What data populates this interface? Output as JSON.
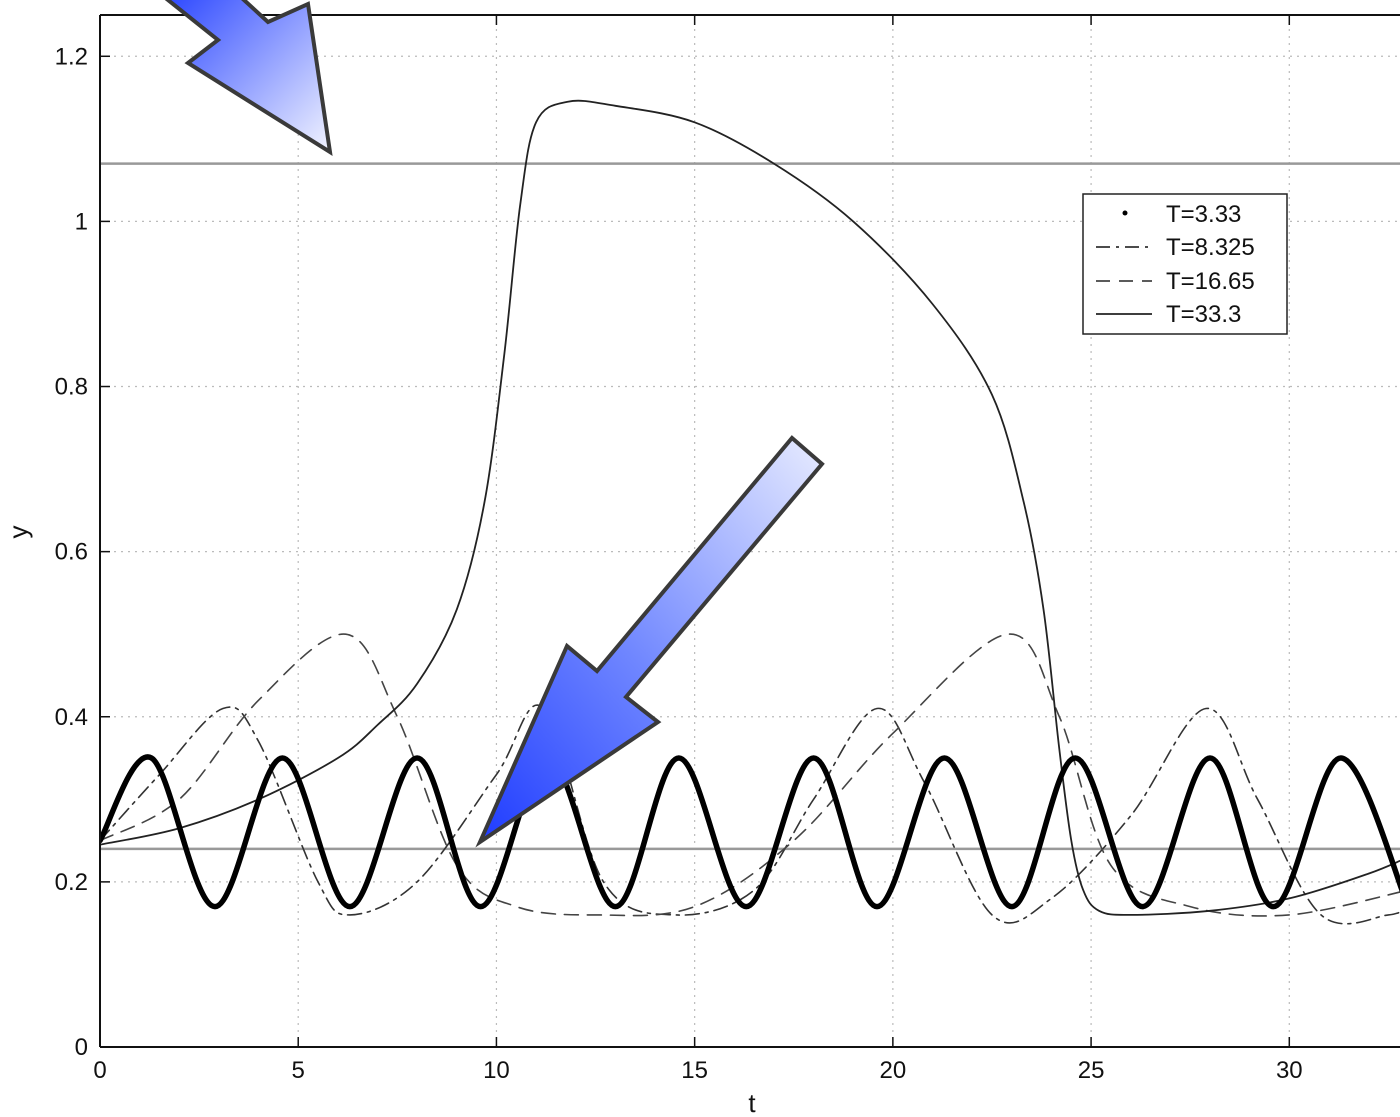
{
  "chart_data": {
    "type": "line",
    "title": "",
    "xlabel": "t",
    "ylabel": "y",
    "xlim": [
      0,
      33
    ],
    "ylim": [
      0,
      1.25
    ],
    "x_ticks": [
      "0",
      "5",
      "10",
      "15",
      "20",
      "25",
      "30"
    ],
    "y_ticks": [
      "0",
      "0.2",
      "0.4",
      "0.6",
      "0.8",
      "1",
      "1.2"
    ],
    "grid": true,
    "legend_position": "top-right",
    "reference_lines_y": [
      1.07,
      0.24
    ],
    "series": [
      {
        "name": "T=3.33",
        "style": "dotted",
        "x": [
          0,
          1.3,
          2.9,
          4.6,
          6.3,
          8.0,
          9.6,
          11.3,
          13.0,
          14.6,
          16.3,
          18.0,
          19.6,
          21.3,
          23.0,
          24.6,
          26.3,
          28.0,
          29.6,
          31.3,
          33.0
        ],
        "y": [
          0.25,
          0.35,
          0.17,
          0.35,
          0.17,
          0.35,
          0.17,
          0.35,
          0.17,
          0.35,
          0.17,
          0.35,
          0.17,
          0.35,
          0.17,
          0.35,
          0.17,
          0.35,
          0.17,
          0.35,
          0.17
        ]
      },
      {
        "name": "T=8.325",
        "style": "dash-dot",
        "x": [
          0,
          1.5,
          3.1,
          4.0,
          5.5,
          6.3,
          8.0,
          10.0,
          11.2,
          12.7,
          14.5,
          16.5,
          18.0,
          19.6,
          20.8,
          22.5,
          24.0,
          26.0,
          27.9,
          29.2,
          30.8,
          32.5,
          33.0
        ],
        "y": [
          0.25,
          0.33,
          0.41,
          0.37,
          0.2,
          0.16,
          0.2,
          0.33,
          0.41,
          0.2,
          0.16,
          0.19,
          0.3,
          0.41,
          0.32,
          0.16,
          0.18,
          0.28,
          0.41,
          0.3,
          0.16,
          0.16,
          0.17
        ]
      },
      {
        "name": "T=16.65",
        "style": "dashed",
        "x": [
          0,
          2.0,
          4.0,
          6.2,
          7.5,
          9.0,
          10.5,
          12.5,
          15.0,
          17.5,
          20.0,
          22.9,
          24.2,
          25.5,
          27.5,
          30.0,
          33.0
        ],
        "y": [
          0.25,
          0.3,
          0.42,
          0.5,
          0.4,
          0.22,
          0.17,
          0.16,
          0.17,
          0.25,
          0.38,
          0.5,
          0.4,
          0.22,
          0.17,
          0.16,
          0.19
        ]
      },
      {
        "name": "T=33.3",
        "style": "solid",
        "x": [
          0,
          2.0,
          4.0,
          6.0,
          7.0,
          8.0,
          9.0,
          9.7,
          10.2,
          10.6,
          11.0,
          11.8,
          13.0,
          15.0,
          17.0,
          19.0,
          21.0,
          22.5,
          23.3,
          23.8,
          24.2,
          24.5,
          24.8,
          25.2,
          26.0,
          28.0,
          30.0,
          32.0,
          33.0
        ],
        "y": [
          0.245,
          0.265,
          0.3,
          0.35,
          0.39,
          0.44,
          0.53,
          0.66,
          0.84,
          1.02,
          1.12,
          1.145,
          1.14,
          1.12,
          1.07,
          1.0,
          0.9,
          0.79,
          0.66,
          0.53,
          0.36,
          0.25,
          0.19,
          0.165,
          0.16,
          0.165,
          0.18,
          0.21,
          0.23
        ]
      }
    ]
  },
  "annotations": [
    {
      "name": "top-left-arrow",
      "color": "#3355ff"
    },
    {
      "name": "center-arrow",
      "color": "#3355ff"
    }
  ]
}
